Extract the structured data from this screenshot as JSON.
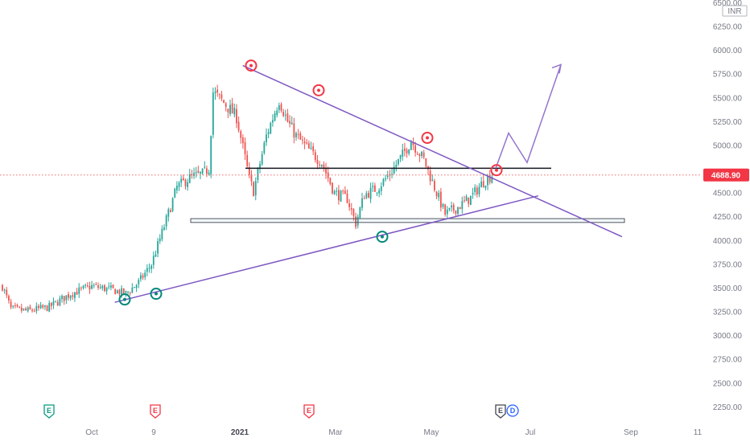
{
  "chart_data": {
    "type": "candlestick",
    "currency": "INR",
    "last_price": "4688.90",
    "last_price_value": 4688.9,
    "ylim": [
      2150,
      6550
    ],
    "y_ticks": [
      "6500.00",
      "6250.00",
      "6000.00",
      "5750.00",
      "5500.00",
      "5250.00",
      "5000.00",
      "4750.00",
      "4500.00",
      "4250.00",
      "4000.00",
      "3750.00",
      "3500.00",
      "3250.00",
      "3000.00",
      "2750.00",
      "2500.00",
      "2250.00"
    ],
    "x_ticks": [
      {
        "label": "Oct",
        "bold": false
      },
      {
        "label": "9",
        "bold": false
      },
      {
        "label": "2021",
        "bold": true
      },
      {
        "label": "Mar",
        "bold": false
      },
      {
        "label": "May",
        "bold": false
      },
      {
        "label": "Jul",
        "bold": false
      },
      {
        "label": "Sep",
        "bold": false
      },
      {
        "label": "11",
        "bold": false
      }
    ],
    "price_anchors": [
      [
        0,
        3520
      ],
      [
        4,
        3280
      ],
      [
        12,
        3260
      ],
      [
        22,
        3300
      ],
      [
        32,
        3440
      ],
      [
        42,
        3520
      ],
      [
        52,
        3480
      ],
      [
        58,
        3440
      ],
      [
        64,
        3560
      ],
      [
        70,
        3750
      ],
      [
        76,
        4150
      ],
      [
        82,
        4560
      ],
      [
        88,
        4660
      ],
      [
        94,
        4700
      ],
      [
        97,
        4760
      ],
      [
        99,
        5560
      ],
      [
        104,
        5450
      ],
      [
        110,
        5300
      ],
      [
        116,
        4650
      ],
      [
        118,
        4520
      ],
      [
        124,
        5100
      ],
      [
        130,
        5480
      ],
      [
        134,
        5250
      ],
      [
        138,
        5100
      ],
      [
        144,
        4950
      ],
      [
        150,
        4820
      ],
      [
        156,
        4500
      ],
      [
        162,
        4440
      ],
      [
        166,
        4180
      ],
      [
        170,
        4480
      ],
      [
        176,
        4550
      ],
      [
        182,
        4700
      ],
      [
        188,
        4900
      ],
      [
        192,
        5050
      ],
      [
        198,
        4850
      ],
      [
        204,
        4500
      ],
      [
        208,
        4280
      ],
      [
        214,
        4350
      ],
      [
        220,
        4450
      ],
      [
        226,
        4620
      ],
      [
        230,
        4690
      ]
    ],
    "levels": [
      {
        "name": "resistance",
        "value": 4760
      },
      {
        "name": "support-zone",
        "low": 4190,
        "high": 4230
      }
    ],
    "trendlines": [
      {
        "name": "descending-trendline",
        "color": "#7e57c2",
        "points": [
          [
            "2021-01-01",
            5840
          ],
          [
            "2021-08-20",
            4040
          ]
        ]
      },
      {
        "name": "ascending-trendline",
        "color": "#7e57c2",
        "points": [
          [
            "2020-10-15",
            3350
          ],
          [
            "2021-06-30",
            4470
          ]
        ]
      }
    ],
    "projection": [
      4760,
      5130,
      4820,
      5850
    ],
    "highs_marked": [
      5840,
      5580,
      5080,
      4740
    ],
    "lows_marked": [
      3380,
      3440,
      4040
    ],
    "events": [
      {
        "name": "earnings-1",
        "kind": "E",
        "color": "#089981"
      },
      {
        "name": "earnings-2",
        "kind": "E",
        "color": "#f23645"
      },
      {
        "name": "earnings-3",
        "kind": "E",
        "color": "#f23645"
      },
      {
        "name": "earnings-4",
        "kind": "E",
        "color": "#434651"
      },
      {
        "name": "dividend-1",
        "kind": "D",
        "color": "#2962ff"
      }
    ]
  }
}
